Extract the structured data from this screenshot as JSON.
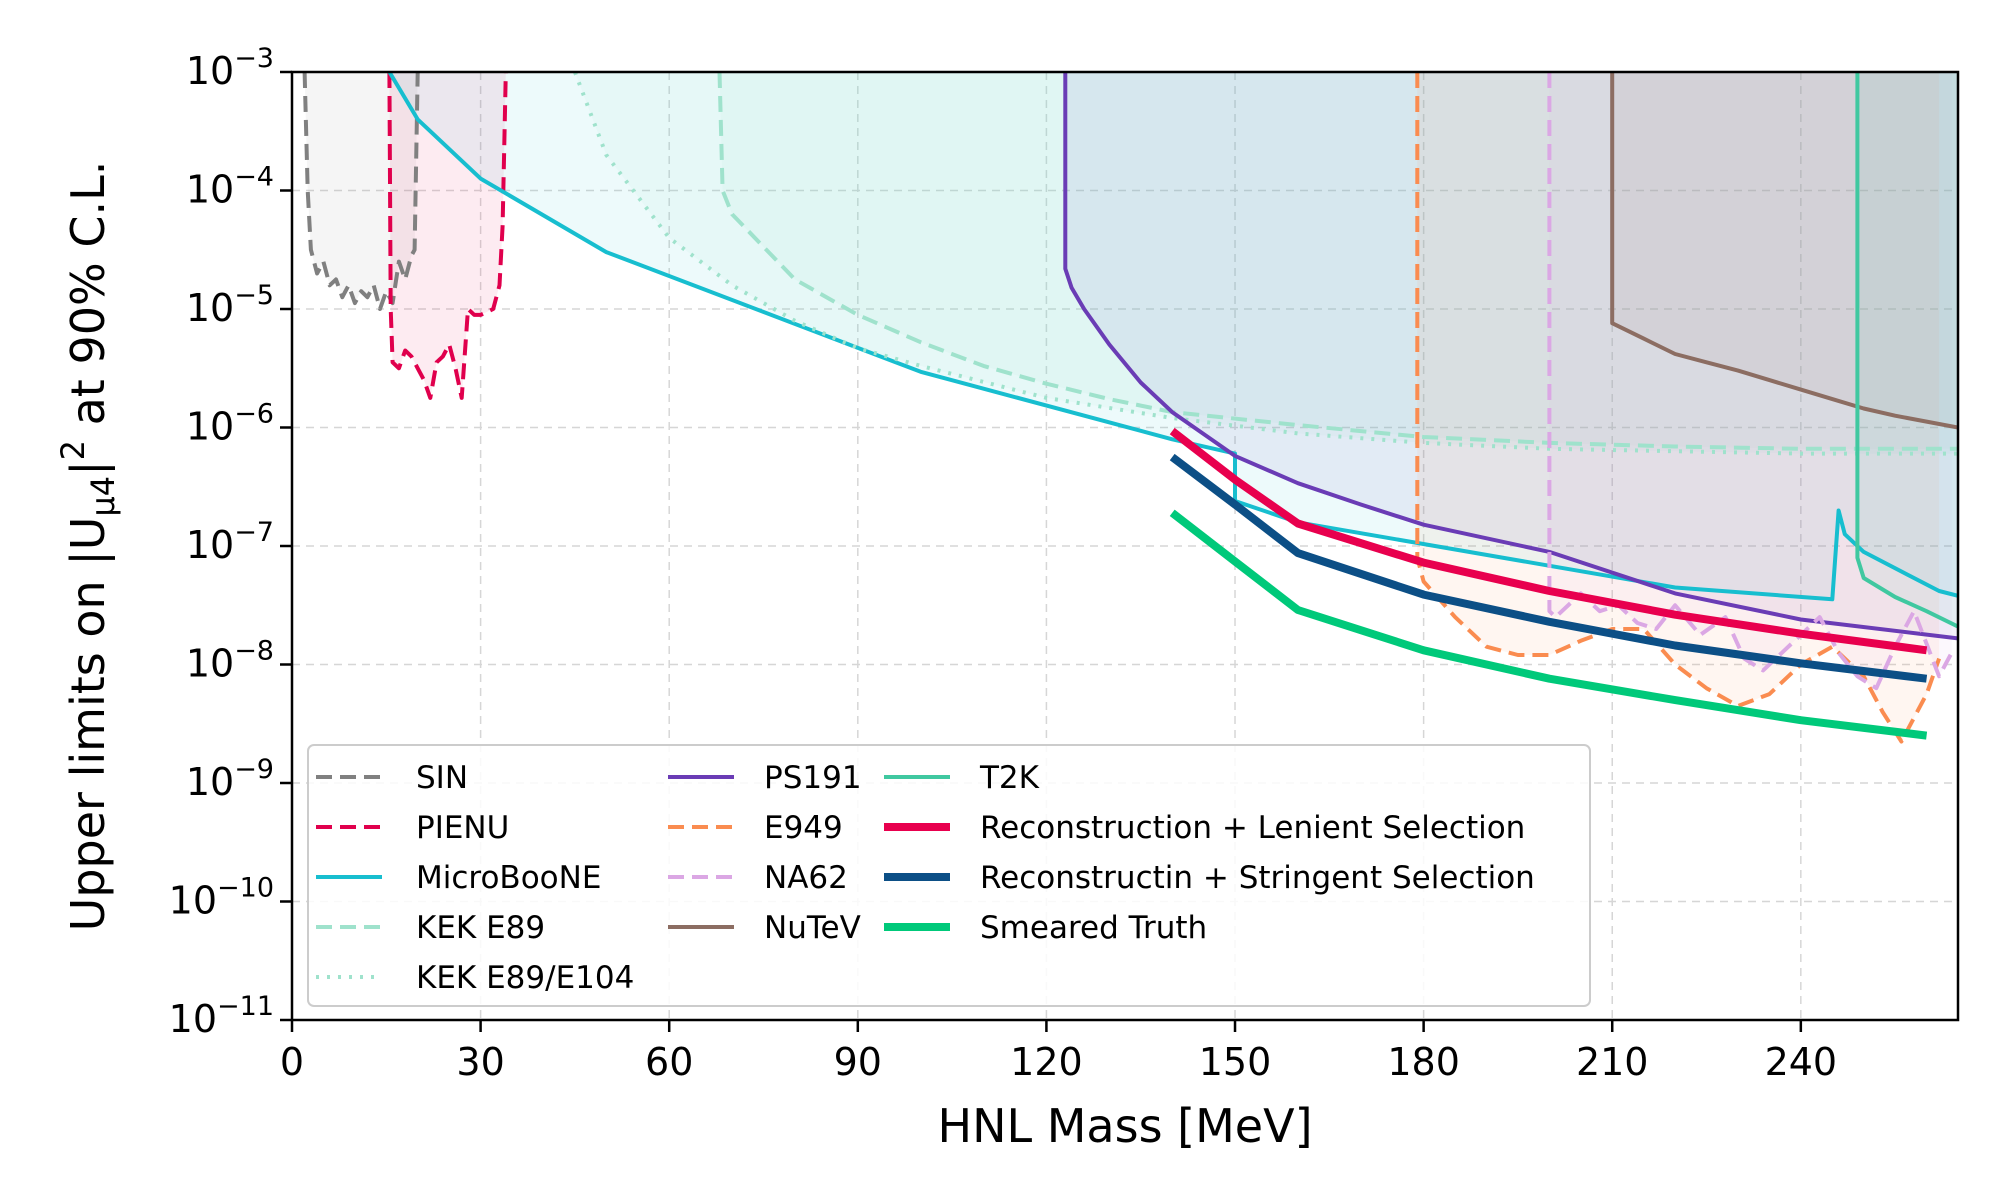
{
  "chart_data": {
    "type": "line",
    "xlabel": "HNL Mass [MeV]",
    "ylabel_main": "Upper limits on |U",
    "ylabel_sub": "μ4",
    "ylabel_sup": "2",
    "ylabel_rest": " at 90% C.L.",
    "xlim": [
      0,
      265
    ],
    "ylim_log10": [
      -11,
      -3
    ],
    "y_scale": "log",
    "grid": true,
    "legend_position": "lower-left",
    "x_ticks": [
      0,
      30,
      60,
      90,
      120,
      150,
      180,
      210,
      240
    ],
    "x_tick_labels": [
      "0",
      "30",
      "60",
      "90",
      "120",
      "150",
      "180",
      "210",
      "240"
    ],
    "y_tick_exponents": [
      -3,
      -4,
      -5,
      -6,
      -7,
      -8,
      -9,
      -10,
      -11
    ],
    "y_tick_base": "10",
    "y_tick_exp_labels": [
      "−3",
      "−4",
      "−5",
      "−6",
      "−7",
      "−8",
      "−9",
      "−10",
      "−11"
    ],
    "series": [
      {
        "name": "SIN",
        "color": "#808080",
        "style": "dashed",
        "width": 4,
        "fill": true,
        "x": [
          2,
          2.5,
          3,
          4,
          5,
          6,
          7,
          8,
          9,
          10,
          11,
          12,
          13,
          14,
          15,
          16,
          17,
          18,
          19,
          19.5,
          20
        ],
        "log10y": [
          -3,
          -4,
          -4.5,
          -4.7,
          -4.6,
          -4.8,
          -4.75,
          -4.9,
          -4.8,
          -4.95,
          -4.85,
          -4.9,
          -4.8,
          -5.0,
          -4.85,
          -4.95,
          -4.6,
          -4.75,
          -4.55,
          -4.5,
          -3
        ]
      },
      {
        "name": "PIENU",
        "color": "#e0004d",
        "style": "dashed",
        "width": 4,
        "fill": true,
        "x": [
          15.5,
          15.7,
          16,
          17,
          18,
          19,
          20,
          21,
          22,
          23,
          24,
          25,
          26,
          27,
          28,
          29,
          30,
          32,
          33,
          33.5,
          34
        ],
        "log10y": [
          -3,
          -5.0,
          -5.45,
          -5.5,
          -5.35,
          -5.4,
          -5.5,
          -5.6,
          -5.75,
          -5.45,
          -5.4,
          -5.3,
          -5.5,
          -5.75,
          -5.0,
          -5.05,
          -5.05,
          -5.0,
          -4.8,
          -4.3,
          -3
        ]
      },
      {
        "name": "MicroBooNE",
        "color": "#17becf",
        "style": "solid",
        "width": 4,
        "fill": true,
        "x": [
          15.5,
          20,
          30,
          50,
          100,
          140,
          150,
          150,
          160,
          220,
          245,
          246,
          247,
          250,
          262,
          265
        ],
        "log10y": [
          -3,
          -3.4,
          -3.9,
          -4.52,
          -5.53,
          -6.1,
          -6.22,
          -6.62,
          -6.8,
          -7.35,
          -7.45,
          -6.7,
          -6.9,
          -7.05,
          -7.38,
          -7.42
        ]
      },
      {
        "name": "KEK E89",
        "color": "#9fe2cc",
        "style": "dashed",
        "width": 4,
        "fill": true,
        "x": [
          68,
          68.5,
          70,
          80,
          90,
          100,
          110,
          120,
          130,
          140,
          160,
          180,
          200,
          220,
          240,
          265
        ],
        "log10y": [
          -3,
          -4.0,
          -4.2,
          -4.75,
          -5.05,
          -5.28,
          -5.48,
          -5.63,
          -5.76,
          -5.87,
          -5.98,
          -6.08,
          -6.13,
          -6.16,
          -6.18,
          -6.18
        ]
      },
      {
        "name": "KEK E89/E104",
        "color": "#9fe2cc",
        "style": "dotted",
        "width": 4,
        "fill": true,
        "x": [
          45,
          50,
          60,
          70,
          80,
          90,
          100,
          120,
          140,
          160,
          180,
          200,
          220,
          240,
          265
        ],
        "log10y": [
          -3,
          -3.7,
          -4.4,
          -4.8,
          -5.1,
          -5.33,
          -5.48,
          -5.75,
          -5.92,
          -6.05,
          -6.13,
          -6.18,
          -6.2,
          -6.22,
          -6.22
        ]
      },
      {
        "name": "PS191",
        "color": "#6a3cb5",
        "style": "solid",
        "width": 4,
        "fill": true,
        "x": [
          123,
          123,
          124,
          126,
          130,
          135,
          140,
          150,
          160,
          170,
          180,
          200,
          220,
          240,
          265
        ],
        "log10y": [
          -3,
          -4.66,
          -4.82,
          -5.0,
          -5.3,
          -5.62,
          -5.87,
          -6.24,
          -6.47,
          -6.65,
          -6.82,
          -7.05,
          -7.4,
          -7.62,
          -7.78
        ]
      },
      {
        "name": "E949",
        "color": "#fa8c50",
        "style": "dashed",
        "width": 4,
        "fill": true,
        "x": [
          179,
          179,
          180,
          185,
          190,
          195,
          200,
          205,
          210,
          215,
          220,
          225,
          230,
          235,
          240,
          245,
          250,
          253,
          256,
          260,
          262
        ],
        "log10y": [
          -3,
          -7.1,
          -7.3,
          -7.6,
          -7.85,
          -7.92,
          -7.92,
          -7.8,
          -7.7,
          -7.7,
          -8.0,
          -8.2,
          -8.35,
          -8.25,
          -8.0,
          -7.85,
          -8.1,
          -8.4,
          -8.65,
          -8.25,
          -7.95
        ]
      },
      {
        "name": "NA62",
        "color": "#dba7e4",
        "style": "dashed",
        "width": 4,
        "fill": true,
        "x": [
          200,
          200,
          201,
          205,
          208,
          211,
          214,
          217,
          220,
          224,
          228,
          231,
          234,
          237,
          240,
          243,
          246,
          249,
          252,
          255,
          258,
          262,
          264
        ],
        "log10y": [
          -3,
          -7.55,
          -7.6,
          -7.4,
          -7.55,
          -7.5,
          -7.65,
          -7.7,
          -7.5,
          -7.75,
          -7.6,
          -7.95,
          -8.05,
          -7.9,
          -7.75,
          -7.6,
          -7.9,
          -8.1,
          -8.2,
          -7.85,
          -7.55,
          -8.1,
          -7.9
        ]
      },
      {
        "name": "NuTeV",
        "color": "#8c6d62",
        "style": "solid",
        "width": 4,
        "fill": true,
        "x": [
          210,
          210,
          215,
          220,
          225,
          230,
          235,
          240,
          245,
          250,
          255,
          260,
          265
        ],
        "log10y": [
          -3,
          -5.12,
          -5.25,
          -5.38,
          -5.45,
          -5.52,
          -5.6,
          -5.68,
          -5.76,
          -5.84,
          -5.9,
          -5.95,
          -6.0
        ]
      },
      {
        "name": "T2K",
        "color": "#40c8a0",
        "style": "solid",
        "width": 4,
        "fill": true,
        "x": [
          249,
          249,
          250,
          255,
          260,
          265
        ],
        "log10y": [
          -3,
          -7.1,
          -7.27,
          -7.43,
          -7.55,
          -7.68
        ]
      },
      {
        "name": "Reconstruction + Lenient Selection",
        "color": "#e8004e",
        "style": "solid",
        "width": 8,
        "fill": false,
        "x": [
          140,
          150,
          160,
          180,
          200,
          220,
          240,
          260
        ],
        "log10y": [
          -6.03,
          -6.44,
          -6.81,
          -7.14,
          -7.38,
          -7.58,
          -7.74,
          -7.88
        ]
      },
      {
        "name": "Reconstructin + Stringent Selection",
        "color": "#0c4f86",
        "style": "solid",
        "width": 8,
        "fill": false,
        "x": [
          140,
          150,
          160,
          180,
          200,
          220,
          240,
          260
        ],
        "log10y": [
          -6.25,
          -6.65,
          -7.06,
          -7.41,
          -7.64,
          -7.84,
          -7.99,
          -8.12
        ]
      },
      {
        "name": "Smeared Truth",
        "color": "#00c97a",
        "style": "solid",
        "width": 8,
        "fill": false,
        "x": [
          140,
          150,
          160,
          180,
          200,
          220,
          240,
          260
        ],
        "log10y": [
          -6.72,
          -7.13,
          -7.54,
          -7.88,
          -8.12,
          -8.3,
          -8.47,
          -8.6
        ]
      }
    ]
  }
}
